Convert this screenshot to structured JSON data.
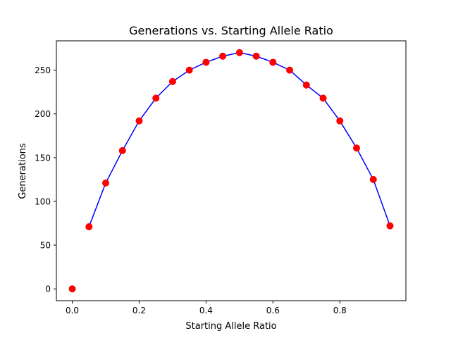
{
  "chart_data": {
    "type": "line",
    "title": "Generations vs. Starting Allele Ratio",
    "xlabel": "Starting Allele Ratio",
    "ylabel": "Generations",
    "xlim": [
      -0.0475,
      0.9975
    ],
    "ylim": [
      -13.5,
      283.5
    ],
    "x_ticks": [
      0.0,
      0.2,
      0.4,
      0.6,
      0.8
    ],
    "x_tick_labels": [
      "0.0",
      "0.2",
      "0.4",
      "0.6",
      "0.8"
    ],
    "y_ticks": [
      0,
      50,
      100,
      150,
      200,
      250
    ],
    "y_tick_labels": [
      "0",
      "50",
      "100",
      "150",
      "200",
      "250"
    ],
    "grid": false,
    "series": [
      {
        "line_color": "#0000ff",
        "marker_color": "#ff0000",
        "x": [
          0.0,
          0.05,
          0.1,
          0.15,
          0.2,
          0.25,
          0.3,
          0.35,
          0.4,
          0.45,
          0.5,
          0.55,
          0.6,
          0.65,
          0.7,
          0.75,
          0.8,
          0.85,
          0.9,
          0.95
        ],
        "y": [
          0,
          71,
          121,
          158,
          192,
          218,
          237,
          250,
          259,
          266,
          270,
          266,
          259,
          250,
          233,
          218,
          192,
          161,
          125,
          72
        ]
      }
    ]
  }
}
